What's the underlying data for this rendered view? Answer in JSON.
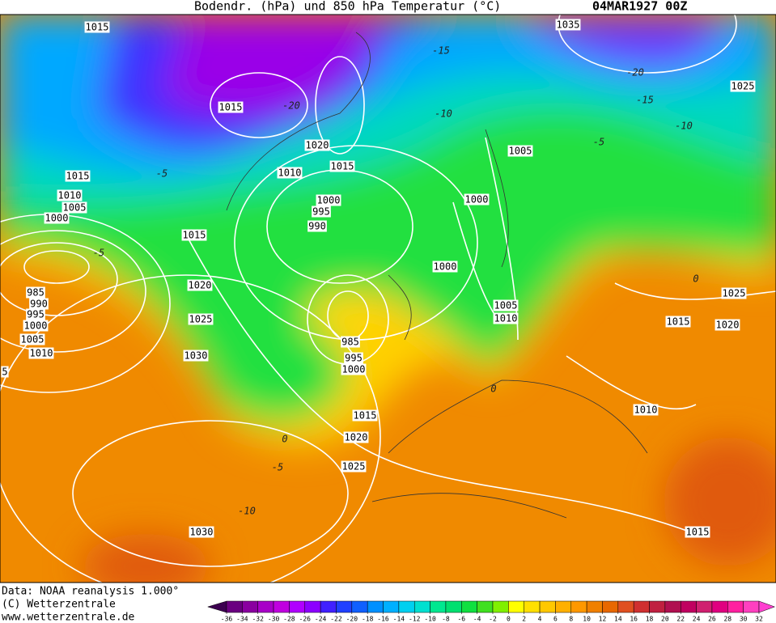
{
  "header": {
    "title": "Bodendr. (hPa) und 850 hPa Temperatur (°C)",
    "date": "04MAR1927 00Z"
  },
  "isobar_labels": [
    "1015",
    "1035",
    "1025",
    "1015",
    "1020",
    "1015",
    "1010",
    "1005",
    "1000",
    "1015",
    "1010",
    "1005",
    "1000",
    "1000",
    "995",
    "990",
    "1015",
    "1000",
    "1020",
    "985",
    "990",
    "995",
    "1000",
    "1005",
    "1010",
    "1025",
    "1005",
    "1010",
    "1025",
    "1015",
    "1020",
    "985",
    "995",
    "1000",
    "1030",
    "1015",
    "1020",
    "1025",
    "1010",
    "1030",
    "1015",
    "5"
  ],
  "temperature_labels": [
    "-15",
    "-20",
    "-15",
    "-10",
    "-10",
    "-5",
    "-20",
    "-5",
    "-5",
    "0",
    "0",
    "0",
    "-5",
    "-10"
  ],
  "footer": [
    "Data: NOAA reanalysis 1.000°",
    "(C) Wetterzentrale",
    "www.wetterzentrale.de"
  ],
  "colorbar": {
    "ticks": [
      -36,
      -34,
      -32,
      -30,
      -28,
      -26,
      -24,
      -22,
      -20,
      -18,
      -16,
      -14,
      -12,
      -10,
      -8,
      -6,
      -4,
      -2,
      0,
      2,
      4,
      6,
      8,
      10,
      12,
      14,
      16,
      18,
      20,
      22,
      24,
      26,
      28,
      30,
      32
    ],
    "colors": [
      "#3c0050",
      "#6a0080",
      "#8a00a0",
      "#a800c8",
      "#c000e0",
      "#b000ff",
      "#8c00ff",
      "#4020ff",
      "#2040ff",
      "#1060ff",
      "#0090ff",
      "#00b0ff",
      "#00d0f0",
      "#00e0d0",
      "#00e890",
      "#00e070",
      "#10e040",
      "#40e020",
      "#80f000",
      "#ffff00",
      "#ffe000",
      "#ffc800",
      "#ffb000",
      "#ff9800",
      "#f08000",
      "#e86800",
      "#e05020",
      "#d03030",
      "#c02040",
      "#b01050",
      "#c00060",
      "#d02070",
      "#e00080",
      "#ff20a0",
      "#ff40c0",
      "#ff40d0"
    ]
  }
}
